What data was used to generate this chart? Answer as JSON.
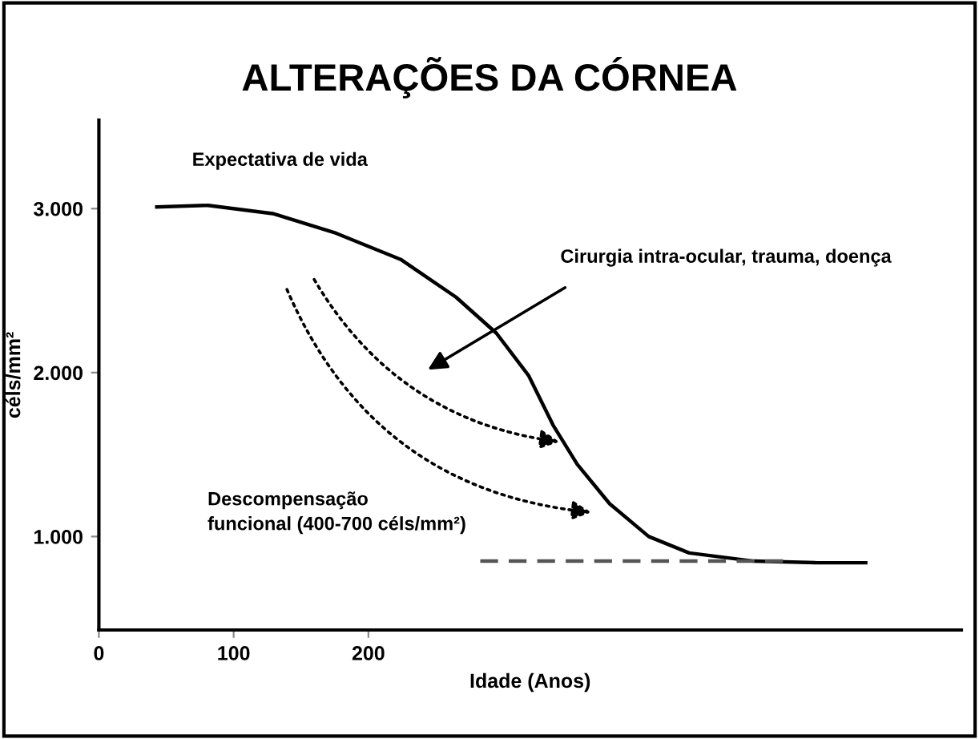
{
  "chart_data": {
    "type": "line",
    "title": "ALTERAÇÕES DA CÓRNEA",
    "xlabel": "Idade (Anos)",
    "ylabel": "céls/mm²",
    "series": [
      {
        "color": "#000000",
        "line_style": "solid",
        "x": [
          43,
          81,
          129,
          176,
          224,
          265,
          295,
          319,
          337,
          355,
          379,
          408,
          438,
          486,
          533,
          569
        ],
        "values": [
          3010,
          3020,
          2970,
          2850,
          2690,
          2460,
          2240,
          1980,
          1680,
          1440,
          1200,
          1000,
          900,
          850,
          840,
          840
        ]
      },
      {
        "color": "#555555",
        "line_style": "dashed",
        "x": [
          283,
          510
        ],
        "values": [
          850,
          850
        ]
      }
    ],
    "annotations": [
      "Expectativa de vida",
      "Cirurgia intra-ocular, trauma, doença",
      "Descompensação\nfuncional (400-700 céls/mm²)"
    ],
    "xlim": [
      0,
      640
    ],
    "xticks": [
      0,
      100,
      200
    ],
    "ylim": [
      430,
      3540
    ],
    "yticks": [
      {
        "value": 1000,
        "label": "1.000"
      },
      {
        "value": 2000,
        "label": "2.000"
      },
      {
        "value": 3000,
        "label": "3.000"
      }
    ],
    "grid": false,
    "legend": false,
    "marker": "none"
  }
}
